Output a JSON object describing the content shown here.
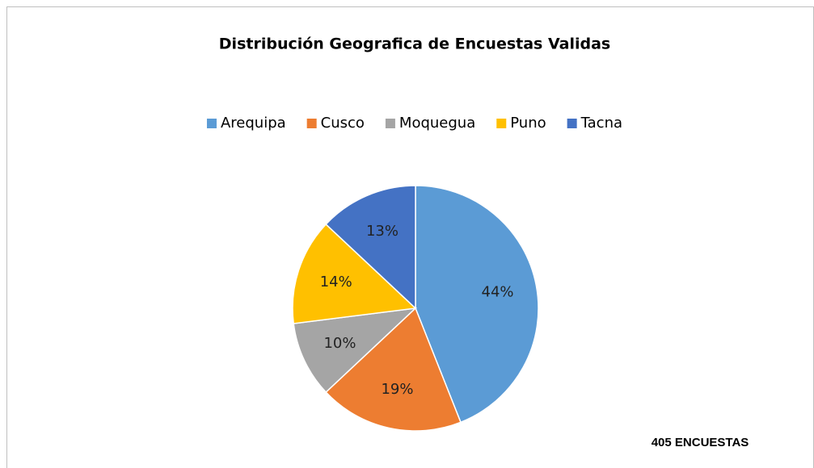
{
  "chart_data": {
    "type": "pie",
    "title": "Distribución Geografica de Encuestas Validas",
    "categories": [
      "Arequipa",
      "Cusco",
      "Moquegua",
      "Puno",
      "Tacna"
    ],
    "values": [
      44,
      19,
      10,
      14,
      13
    ],
    "value_labels": [
      "44%",
      "19%",
      "10%",
      "14%",
      "13%"
    ],
    "colors": [
      "#5b9bd5",
      "#ed7d31",
      "#a5a5a5",
      "#ffc000",
      "#4472c4"
    ],
    "legend": "top",
    "annotation": "405 ENCUESTAS"
  }
}
